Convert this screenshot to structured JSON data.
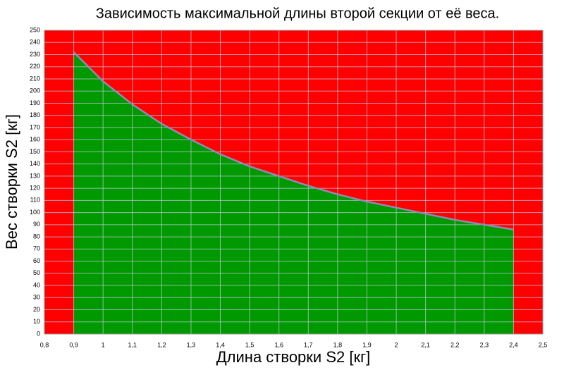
{
  "chart_data": {
    "type": "area",
    "title": "Зависимость максимальной длины второй секции от её веса.",
    "x_label": "Длина створки S2 [кг]",
    "y_label": "Вес створки S2 [кг]",
    "x": [
      0.9,
      1.0,
      1.1,
      1.2,
      1.3,
      1.4,
      1.5,
      1.6,
      1.7,
      1.8,
      1.9,
      2.0,
      2.1,
      2.2,
      2.3,
      2.4
    ],
    "values": [
      232,
      208,
      189,
      173,
      160,
      148,
      138,
      130,
      122,
      115,
      109,
      104,
      99,
      94,
      90,
      86
    ],
    "color": "#009900",
    "line_color": "#8c8cb4",
    "background_color": "#ff0000",
    "grid": true,
    "xlim": [
      0.8,
      2.5
    ],
    "xticks": [
      {
        "value": 0.8,
        "label": "0,8"
      },
      {
        "value": 0.9,
        "label": "0,9"
      },
      1,
      {
        "value": 1.1,
        "label": "1,1"
      },
      {
        "value": 1.2,
        "label": "1,2"
      },
      {
        "value": 1.3,
        "label": "1,3"
      },
      {
        "value": 1.4,
        "label": "1,4"
      },
      {
        "value": 1.5,
        "label": "1,5"
      },
      {
        "value": 1.6,
        "label": "1,6"
      },
      {
        "value": 1.7,
        "label": "1,7"
      },
      {
        "value": 1.8,
        "label": "1,8"
      },
      {
        "value": 1.9,
        "label": "1,9"
      },
      2,
      {
        "value": 2.1,
        "label": "2,1"
      },
      {
        "value": 2.2,
        "label": "2,2"
      },
      {
        "value": 2.3,
        "label": "2,3"
      },
      {
        "value": 2.4,
        "label": "2,4"
      },
      {
        "value": 2.5,
        "label": "2,5"
      }
    ],
    "ylim": [
      0,
      250
    ],
    "yticks": [
      0,
      10,
      20,
      30,
      40,
      50,
      60,
      70,
      80,
      90,
      100,
      110,
      120,
      130,
      140,
      150,
      160,
      170,
      180,
      190,
      200,
      210,
      220,
      230,
      240,
      250
    ]
  }
}
